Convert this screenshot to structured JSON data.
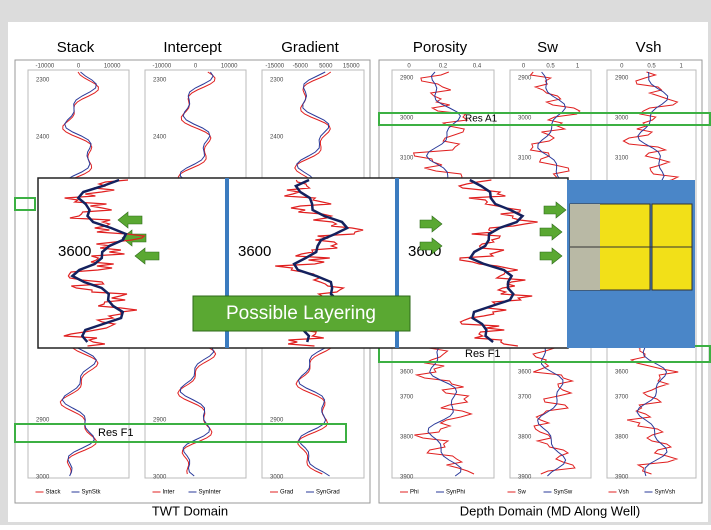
{
  "panels": [
    {
      "title": "Stack",
      "ticks": [
        "-10000",
        "0",
        "10000"
      ],
      "depths": [
        "2300",
        "2400",
        "2900",
        "3000"
      ],
      "legend": [
        "Stack",
        "SynStk"
      ]
    },
    {
      "title": "Intercept",
      "ticks": [
        "-10000",
        "0",
        "10000"
      ],
      "depths": [
        "2300",
        "2400",
        "2900",
        "3000"
      ],
      "legend": [
        "Inter",
        "SynInter"
      ]
    },
    {
      "title": "Gradient",
      "ticks": [
        "-15000",
        "-5000",
        "5000",
        "15000"
      ],
      "depths": [
        "2300",
        "2400",
        "2900",
        "3000"
      ],
      "legend": [
        "Grad",
        "SynGrad"
      ]
    },
    {
      "title": "Porosity",
      "ticks": [
        "0",
        "0.2",
        "0.4"
      ],
      "depths": [
        "2900",
        "3000",
        "3100",
        "3600",
        "3700",
        "3800",
        "3900"
      ],
      "legend": [
        "Phi",
        "SynPhi"
      ]
    },
    {
      "title": "Sw",
      "ticks": [
        "0",
        "0.5",
        "1"
      ],
      "depths": [
        "2900",
        "3000",
        "3100",
        "3600",
        "3700",
        "3800",
        "3900"
      ],
      "legend": [
        "Sw",
        "SynSw"
      ]
    },
    {
      "title": "Vsh",
      "ticks": [
        "0",
        "0.5",
        "1"
      ],
      "depths": [
        "2900",
        "3000",
        "3100",
        "3600",
        "3700",
        "3800",
        "3900"
      ],
      "legend": [
        "Vsh",
        "SynVsh"
      ]
    }
  ],
  "zones": [
    "Res A1",
    "Res F1",
    "Res F1"
  ],
  "inset": {
    "depth_labels": [
      "3600",
      "3600",
      "3600"
    ],
    "callout": "Possible Layering"
  },
  "domains": [
    "TWT Domain",
    "Depth Domain (MD Along Well)"
  ]
}
